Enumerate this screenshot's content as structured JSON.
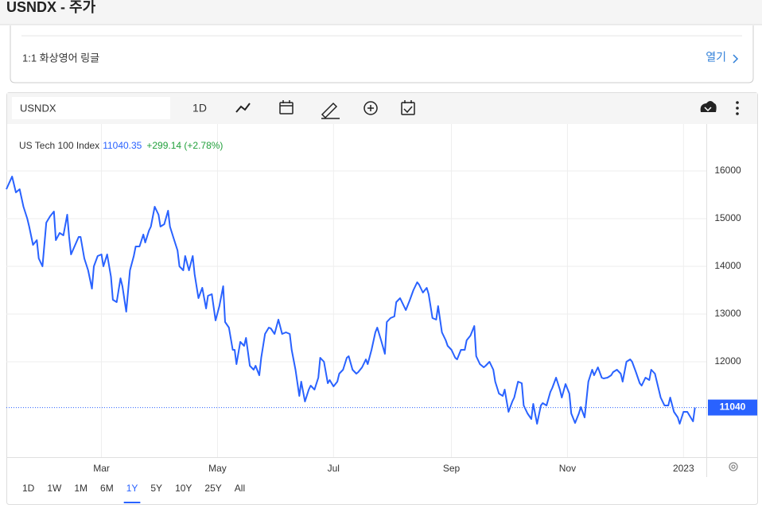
{
  "header": {
    "title": "USNDX - 주가"
  },
  "ad": {
    "text": "1:1 화상영어 링글",
    "link": "열기"
  },
  "toolbar": {
    "symbol": "USNDX",
    "interval": "1D"
  },
  "chart_data": {
    "type": "line",
    "change": "+299.14 (+2.78%)",
    "x": [
      9,
      12,
      14,
      16,
      18,
      20,
      21,
      23,
      25,
      26,
      28,
      30,
      32,
      34,
      35,
      37,
      39,
      41,
      42,
      43,
      47,
      48,
      50,
      52,
      54,
      55,
      57,
      59,
      60,
      62,
      64,
      65,
      67,
      69,
      70,
      72,
      74,
      76,
      77,
      79,
      81,
      82,
      84,
      85,
      87,
      89,
      90,
      92,
      94,
      95,
      97,
      99,
      100,
      102,
      103,
      105,
      107,
      108,
      110,
      112,
      114,
      115,
      117,
      119,
      121,
      123,
      124,
      126,
      128,
      129,
      130,
      132,
      134,
      135,
      137,
      139,
      140,
      142,
      143,
      145,
      147,
      148,
      150,
      152,
      154,
      156,
      158,
      159,
      161,
      163,
      164,
      166,
      168,
      169,
      171,
      173,
      174,
      176,
      178,
      179,
      181,
      183,
      184,
      186,
      188,
      189,
      191,
      193,
      194,
      196,
      198,
      199,
      201,
      203,
      204,
      206,
      208,
      209,
      211,
      213,
      214,
      216,
      218,
      219,
      221,
      223,
      225,
      226,
      228,
      230,
      231,
      233,
      235,
      236,
      238,
      240,
      241,
      243,
      245,
      246,
      248,
      250,
      251,
      253,
      255,
      256,
      258,
      260,
      261,
      263,
      265,
      266,
      268,
      270,
      271,
      273,
      275,
      276,
      278,
      280,
      281,
      283,
      285,
      286,
      288,
      290,
      291,
      293,
      295,
      296,
      298,
      300,
      301,
      303,
      305,
      306,
      308,
      310,
      311,
      313,
      315,
      317,
      318,
      320,
      322,
      323,
      325,
      327,
      328,
      330,
      332,
      333,
      335,
      337,
      338,
      340,
      342,
      343,
      345,
      347,
      348,
      350,
      352,
      353,
      355,
      357,
      358,
      360,
      362,
      363,
      365,
      367,
      368,
      370,
      371
    ],
    "series": [
      {
        "name": "US Tech 100 Index",
        "color": "#2962ff",
        "values": [
          15617,
          15883,
          15550,
          15617,
          15250,
          15000,
          14833,
          14450,
          14550,
          14167,
          14000,
          14917,
          15050,
          15150,
          14550,
          14700,
          14650,
          15083,
          14617,
          14250,
          14617,
          14617,
          14167,
          13917,
          13533,
          14000,
          14217,
          14250,
          14000,
          14250,
          13783,
          13300,
          13250,
          13750,
          13583,
          13050,
          13917,
          14217,
          14417,
          14417,
          14667,
          14500,
          14750,
          14833,
          15250,
          15083,
          14833,
          14883,
          15167,
          14833,
          14583,
          14333,
          14000,
          13917,
          14217,
          13917,
          14217,
          13833,
          13333,
          13550,
          13117,
          13383,
          13417,
          12867,
          13167,
          13583,
          12833,
          12717,
          12250,
          12250,
          11950,
          12417,
          12333,
          12500,
          11917,
          11833,
          11917,
          11717,
          12083,
          12583,
          12717,
          12700,
          12583,
          12883,
          12583,
          12617,
          12583,
          12250,
          11833,
          11283,
          11583,
          11167,
          11417,
          11500,
          11417,
          11667,
          12083,
          12000,
          11550,
          11617,
          11483,
          11583,
          11750,
          11833,
          12083,
          12117,
          11833,
          11750,
          11783,
          11883,
          12050,
          11950,
          12250,
          12617,
          12717,
          12450,
          12167,
          12833,
          12917,
          12950,
          13250,
          13333,
          13167,
          13083,
          13283,
          13500,
          13667,
          13617,
          13450,
          13550,
          13417,
          12917,
          12883,
          13167,
          12617,
          12450,
          12333,
          12250,
          12083,
          12050,
          12250,
          12250,
          12450,
          12550,
          12750,
          12117,
          11950,
          11883,
          11917,
          12000,
          11833,
          11583,
          11333,
          11283,
          11417,
          10950,
          11167,
          11250,
          11583,
          11550,
          11083,
          10917,
          10800,
          11117,
          10700,
          11083,
          11133,
          11083,
          11367,
          11450,
          11667,
          11417,
          11250,
          11533,
          11333,
          10917,
          10717,
          10917,
          11050,
          10833,
          11583,
          11833,
          11717,
          11883,
          11667,
          11650,
          11667,
          11717,
          11783,
          11833,
          11750,
          11583,
          12000,
          12050,
          12000,
          11783,
          11550,
          11500,
          11667,
          11617,
          11833,
          11750,
          11417,
          11250,
          11083,
          11083,
          11250,
          10950,
          10833,
          10700,
          10950,
          10950,
          10883,
          10750,
          11040.35
        ]
      }
    ],
    "xlim": [
      9,
      377
    ],
    "xticks": [
      {
        "value": 59,
        "label": "Mar"
      },
      {
        "value": 120,
        "label": "May"
      },
      {
        "value": 181,
        "label": "Jul"
      },
      {
        "value": 243,
        "label": "Sep"
      },
      {
        "value": 304,
        "label": "Nov"
      },
      {
        "value": 365,
        "label": "2023"
      }
    ],
    "ylim": [
      10000,
      16983
    ],
    "yticks": [
      12000,
      13000,
      14000,
      15000,
      16000
    ],
    "grid": true,
    "last_price": {
      "value": 11040.35,
      "label": "11040"
    }
  },
  "ranges": {
    "options": [
      "1D",
      "1W",
      "1M",
      "6M",
      "1Y",
      "5Y",
      "10Y",
      "25Y",
      "All"
    ],
    "active": 4
  }
}
